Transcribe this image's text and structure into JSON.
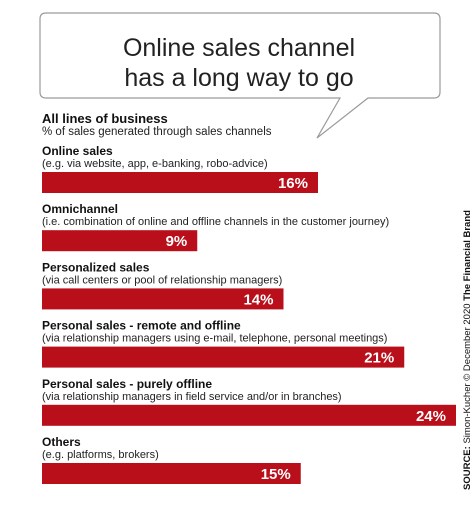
{
  "callout": {
    "line1": "Online sales channel",
    "line2": "has a long way to go"
  },
  "section": {
    "title": "All lines of business",
    "subtitle": "% of sales generated through sales channels"
  },
  "source": {
    "label": "SOURCE:",
    "text": " Simon-Kucher © December 2020 ",
    "brand": "The Financial Brand"
  },
  "colors": {
    "bar": "#b80f1b",
    "bubble_border": "#9a9a9a",
    "bar_text": "#ffffff"
  },
  "chart_data": {
    "type": "bar",
    "orientation": "horizontal",
    "title": "All lines of business",
    "subtitle": "% of sales generated through sales channels",
    "categories": [
      "Online sales",
      "Omnichannel",
      "Personalized sales",
      "Personal sales - remote and offline",
      "Personal sales - purely offline",
      "Others"
    ],
    "descriptions": [
      "(e.g. via website, app, e-banking, robo-advice)",
      "(i.e. combination of online and offline channels in the customer journey)",
      "(via call centers or pool of relationship managers)",
      "(via relationship managers using e-mail, telephone, personal meetings)",
      "(via relationship managers in field service and/or in branches)",
      "(e.g. platforms, brokers)"
    ],
    "values": [
      16,
      9,
      14,
      21,
      24,
      15
    ],
    "value_labels": [
      "16%",
      "9%",
      "14%",
      "21%",
      "24%",
      "15%"
    ],
    "unit": "%"
  }
}
